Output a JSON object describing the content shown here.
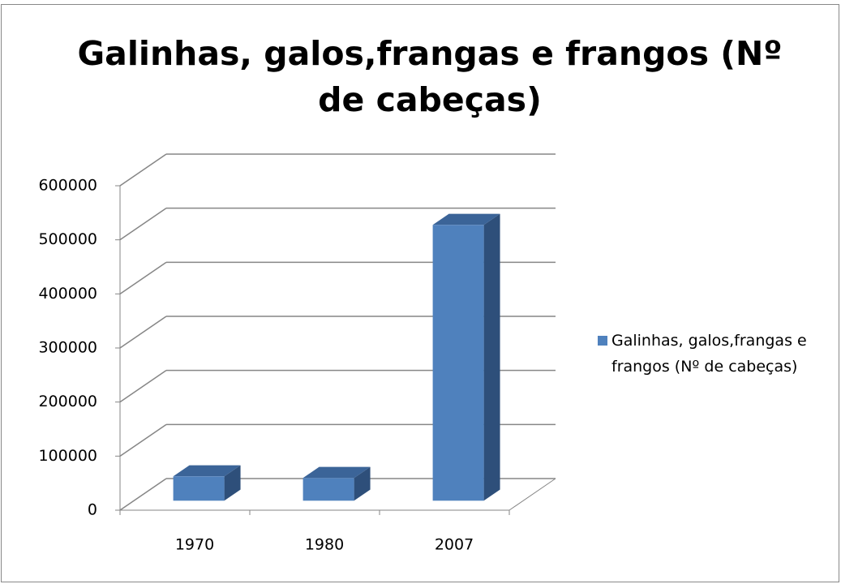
{
  "chart_data": {
    "type": "bar3d",
    "title": "Galinhas, galos,frangas e frangos (Nº de cabeças)",
    "categories": [
      "1970",
      "1980",
      "2007"
    ],
    "series": [
      {
        "name": "Galinhas, galos,frangas e frangos (Nº de cabeças)",
        "color": "#4f81bd",
        "values": [
          45000,
          42000,
          510000
        ]
      }
    ],
    "ylim": [
      0,
      600000
    ],
    "yticks": [
      0,
      100000,
      200000,
      300000,
      400000,
      500000,
      600000
    ],
    "grid": true,
    "legend": "right"
  }
}
